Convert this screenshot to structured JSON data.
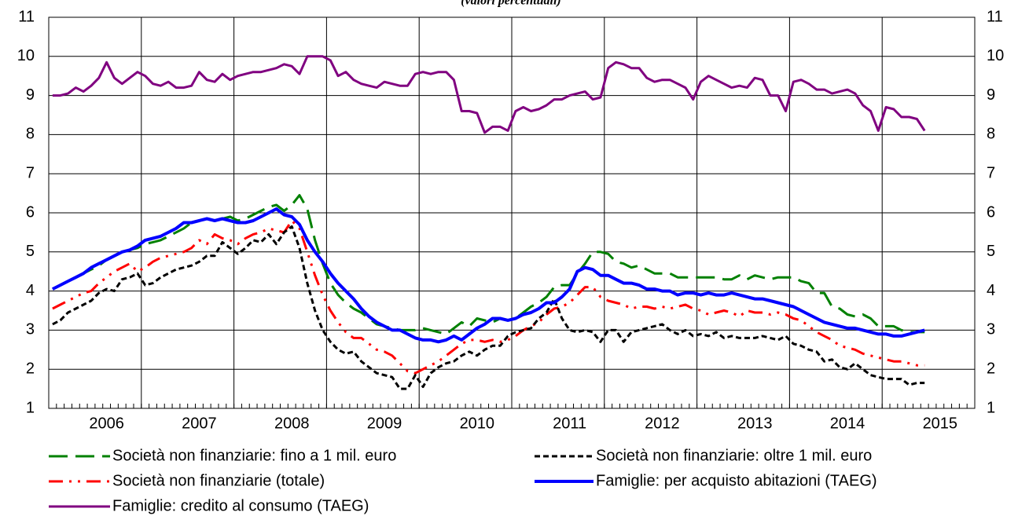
{
  "chart_data": {
    "type": "line",
    "subtitle": "(valori percentuali)",
    "categories": [
      null,
      null,
      null,
      null,
      null,
      null,
      null,
      "2006",
      null,
      null,
      null,
      null,
      null,
      null,
      null,
      null,
      null,
      null,
      null,
      "2007",
      null,
      null,
      null,
      null,
      null,
      null,
      null,
      null,
      null,
      null,
      null,
      "2008",
      null,
      null,
      null,
      null,
      null,
      null,
      null,
      null,
      null,
      null,
      null,
      "2009",
      null,
      null,
      null,
      null,
      null,
      null,
      null,
      null,
      null,
      null,
      null,
      "2010",
      null,
      null,
      null,
      null,
      null,
      null,
      null,
      null,
      null,
      null,
      null,
      "2011",
      null,
      null,
      null,
      null,
      null,
      null,
      null,
      null,
      null,
      null,
      null,
      "2012",
      null,
      null,
      null,
      null,
      null,
      null,
      null,
      null,
      null,
      null,
      null,
      "2013",
      null,
      null,
      null,
      null,
      null,
      null,
      null,
      null,
      null,
      null,
      null,
      "2014",
      null,
      null,
      null,
      null,
      null,
      null,
      null,
      null,
      null,
      null,
      null,
      "2015",
      null,
      null,
      null,
      null
    ],
    "ylim": [
      1,
      11
    ],
    "yticks": [
      1,
      2,
      3,
      4,
      5,
      6,
      7,
      8,
      9,
      10,
      11
    ],
    "grid": true,
    "series": [
      {
        "name": "Società non finanziarie: fino a 1 mil. euro",
        "color": "#008000",
        "linestyle": "dashed",
        "values": [
          4.05,
          4.15,
          4.25,
          4.35,
          4.45,
          4.55,
          4.65,
          4.8,
          4.9,
          5.0,
          5.05,
          5.1,
          5.2,
          5.25,
          5.3,
          5.4,
          5.5,
          5.6,
          5.75,
          5.8,
          5.85,
          5.8,
          5.85,
          5.9,
          5.8,
          5.85,
          5.95,
          6.05,
          6.15,
          6.2,
          6.05,
          6.2,
          6.45,
          6.1,
          5.3,
          4.7,
          4.2,
          3.9,
          3.7,
          3.55,
          3.45,
          3.3,
          3.15,
          3.1,
          3.05,
          3.0,
          3.0,
          3.0,
          3.05,
          3.0,
          2.95,
          2.9,
          3.05,
          3.2,
          3.1,
          3.3,
          3.25,
          3.2,
          3.3,
          3.25,
          3.3,
          3.45,
          3.6,
          3.7,
          3.85,
          4.1,
          4.15,
          4.15,
          4.45,
          4.7,
          5.0,
          5.0,
          4.95,
          4.75,
          4.7,
          4.6,
          4.65,
          4.55,
          4.45,
          4.45,
          4.45,
          4.35,
          4.35,
          4.35,
          4.35,
          4.35,
          4.35,
          4.3,
          4.3,
          4.4,
          4.3,
          4.4,
          4.35,
          4.3,
          4.35,
          4.35,
          4.35,
          4.25,
          4.2,
          3.95,
          3.95,
          3.6,
          3.55,
          3.4,
          3.35,
          3.4,
          3.3,
          3.1,
          3.1,
          3.1,
          3.0,
          2.95,
          2.95,
          2.95,
          null,
          null,
          null,
          null,
          null,
          null
        ]
      },
      {
        "name": "Società non finanziarie: oltre 1 mil. euro",
        "color": "#000000",
        "linestyle": "dotted",
        "values": [
          3.15,
          3.25,
          3.45,
          3.55,
          3.65,
          3.75,
          3.95,
          4.05,
          4.0,
          4.3,
          4.35,
          4.45,
          4.15,
          4.2,
          4.35,
          4.45,
          4.55,
          4.6,
          4.65,
          4.75,
          4.9,
          4.9,
          5.25,
          5.1,
          4.95,
          5.1,
          5.3,
          5.25,
          5.45,
          5.2,
          5.5,
          5.65,
          5.1,
          4.2,
          3.5,
          3.0,
          2.7,
          2.5,
          2.4,
          2.45,
          2.2,
          2.05,
          1.9,
          1.85,
          1.8,
          1.5,
          1.5,
          1.85,
          1.55,
          1.9,
          2.05,
          2.15,
          2.2,
          2.35,
          2.45,
          2.35,
          2.5,
          2.6,
          2.6,
          2.85,
          2.95,
          3.0,
          3.05,
          3.3,
          3.45,
          3.8,
          3.3,
          3.0,
          2.95,
          3.0,
          2.95,
          2.7,
          3.0,
          3.0,
          2.7,
          2.95,
          3.0,
          3.05,
          3.1,
          3.15,
          3.0,
          2.9,
          3.0,
          2.85,
          2.9,
          2.85,
          2.95,
          2.8,
          2.85,
          2.8,
          2.8,
          2.8,
          2.85,
          2.8,
          2.75,
          2.85,
          2.65,
          2.6,
          2.5,
          2.45,
          2.2,
          2.25,
          2.05,
          2.0,
          2.15,
          2.0,
          1.85,
          1.8,
          1.75,
          1.75,
          1.75,
          1.6,
          1.65,
          1.65,
          null,
          null,
          null,
          null,
          null,
          null
        ]
      },
      {
        "name": "Società non finanziarie (totale)",
        "color": "#ff0000",
        "linestyle": "dashdotdot",
        "values": [
          3.55,
          3.65,
          3.75,
          3.85,
          3.95,
          4.0,
          4.2,
          4.35,
          4.5,
          4.6,
          4.7,
          4.5,
          4.6,
          4.75,
          4.85,
          4.9,
          4.95,
          5.0,
          5.1,
          5.3,
          5.2,
          5.45,
          5.35,
          5.3,
          5.2,
          5.35,
          5.45,
          5.5,
          5.6,
          5.55,
          5.5,
          5.8,
          5.6,
          5.0,
          4.4,
          3.9,
          3.5,
          3.2,
          2.95,
          2.8,
          2.8,
          2.65,
          2.5,
          2.45,
          2.35,
          2.15,
          1.95,
          1.9,
          2.0,
          2.1,
          2.2,
          2.35,
          2.5,
          2.65,
          2.75,
          2.75,
          2.7,
          2.75,
          2.7,
          2.75,
          2.85,
          3.0,
          3.1,
          3.2,
          3.4,
          3.55,
          3.6,
          3.7,
          3.9,
          4.1,
          4.1,
          3.85,
          3.75,
          3.7,
          3.65,
          3.55,
          3.6,
          3.6,
          3.55,
          3.6,
          3.55,
          3.6,
          3.65,
          3.55,
          3.5,
          3.4,
          3.45,
          3.5,
          3.45,
          3.35,
          3.5,
          3.45,
          3.45,
          3.4,
          3.45,
          3.4,
          3.3,
          3.25,
          3.1,
          2.95,
          2.85,
          2.75,
          2.6,
          2.55,
          2.5,
          2.4,
          2.35,
          2.3,
          2.25,
          2.2,
          2.2,
          2.15,
          2.1,
          2.1,
          null,
          null,
          null,
          null,
          null,
          null
        ]
      },
      {
        "name": "Famiglie: per acquisto abitazioni (TAEG)",
        "color": "#0000ff",
        "linestyle": "thick",
        "values": [
          4.05,
          4.15,
          4.25,
          4.35,
          4.45,
          4.6,
          4.7,
          4.8,
          4.9,
          5.0,
          5.05,
          5.15,
          5.3,
          5.35,
          5.4,
          5.5,
          5.6,
          5.75,
          5.75,
          5.8,
          5.85,
          5.8,
          5.85,
          5.8,
          5.75,
          5.75,
          5.8,
          5.9,
          6.0,
          6.1,
          5.95,
          5.9,
          5.7,
          5.3,
          5.0,
          4.75,
          4.45,
          4.2,
          4.0,
          3.8,
          3.55,
          3.35,
          3.2,
          3.1,
          3.0,
          3.0,
          2.9,
          2.8,
          2.75,
          2.75,
          2.7,
          2.75,
          2.85,
          2.75,
          2.9,
          3.05,
          3.15,
          3.3,
          3.3,
          3.25,
          3.3,
          3.4,
          3.45,
          3.55,
          3.7,
          3.7,
          3.85,
          4.05,
          4.5,
          4.6,
          4.55,
          4.4,
          4.4,
          4.3,
          4.2,
          4.2,
          4.15,
          4.05,
          4.05,
          4.0,
          4.0,
          3.9,
          3.95,
          3.95,
          3.9,
          3.95,
          3.9,
          3.9,
          3.95,
          3.9,
          3.85,
          3.8,
          3.8,
          3.75,
          3.7,
          3.65,
          3.6,
          3.5,
          3.4,
          3.3,
          3.2,
          3.15,
          3.1,
          3.05,
          3.05,
          3.0,
          2.95,
          2.9,
          2.9,
          2.85,
          2.85,
          2.9,
          2.95,
          3.0,
          null,
          null,
          null,
          null,
          null,
          null
        ]
      },
      {
        "name": "Famiglie: credito al consumo (TAEG)",
        "color": "#800080",
        "linestyle": "solid",
        "values": [
          9.0,
          9.0,
          9.05,
          9.2,
          9.1,
          9.25,
          9.45,
          9.85,
          9.45,
          9.3,
          9.45,
          9.6,
          9.5,
          9.3,
          9.25,
          9.35,
          9.2,
          9.2,
          9.25,
          9.6,
          9.4,
          9.35,
          9.55,
          9.4,
          9.5,
          9.55,
          9.6,
          9.6,
          9.65,
          9.7,
          9.8,
          9.75,
          9.55,
          10.0,
          10.0,
          10.0,
          9.9,
          9.5,
          9.6,
          9.4,
          9.3,
          9.25,
          9.2,
          9.35,
          9.3,
          9.25,
          9.25,
          9.55,
          9.6,
          9.55,
          9.6,
          9.6,
          9.4,
          8.6,
          8.6,
          8.55,
          8.05,
          8.2,
          8.2,
          8.1,
          8.6,
          8.7,
          8.6,
          8.65,
          8.75,
          8.9,
          8.9,
          9.0,
          9.05,
          9.1,
          8.9,
          8.95,
          9.7,
          9.85,
          9.8,
          9.7,
          9.7,
          9.45,
          9.35,
          9.4,
          9.4,
          9.3,
          9.2,
          8.9,
          9.35,
          9.5,
          9.4,
          9.3,
          9.2,
          9.25,
          9.2,
          9.45,
          9.4,
          9.0,
          9.0,
          8.6,
          9.35,
          9.4,
          9.3,
          9.15,
          9.15,
          9.05,
          9.1,
          9.15,
          9.05,
          8.75,
          8.6,
          8.1,
          8.7,
          8.65,
          8.45,
          8.45,
          8.4,
          8.1,
          null,
          null,
          null,
          null,
          null,
          null
        ]
      }
    ]
  }
}
